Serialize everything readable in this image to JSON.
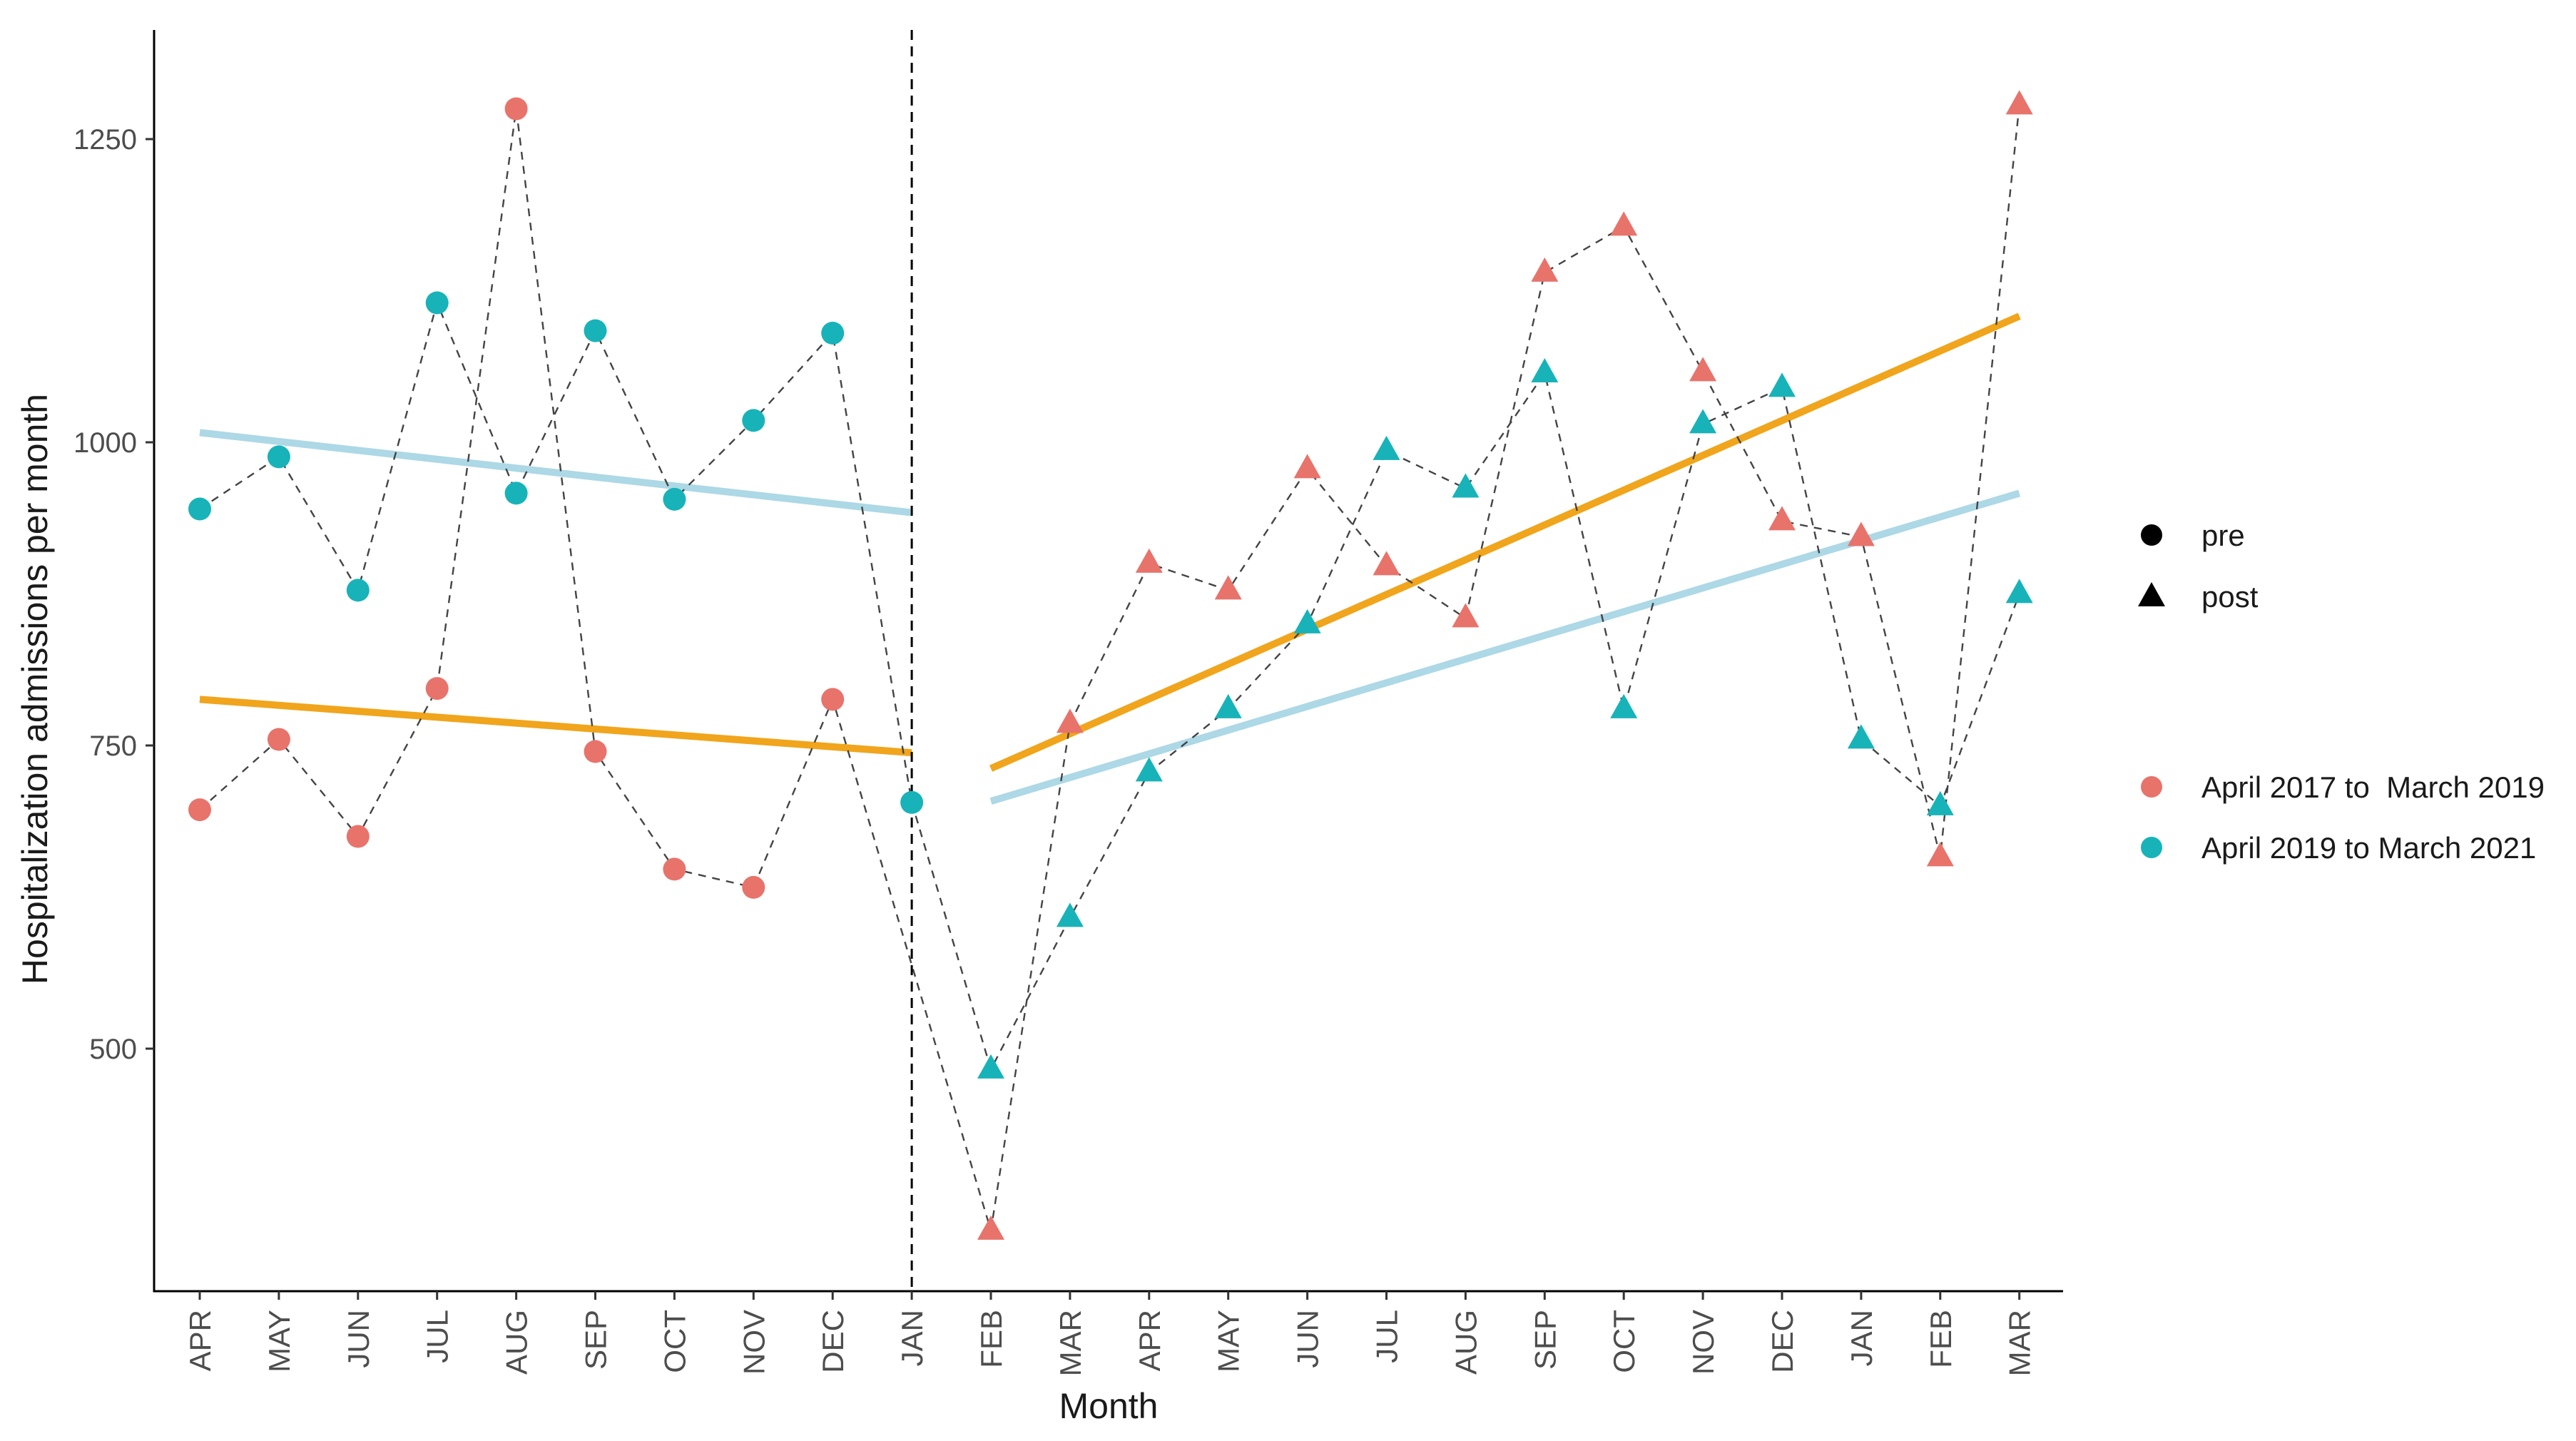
{
  "chart_data": {
    "type": "scatter",
    "title": "",
    "xlabel": "Month",
    "ylabel": "Hospitalization admissions per month",
    "ylim": [
      300,
      1340
    ],
    "y_ticks": [
      500,
      750,
      1000,
      1250
    ],
    "categories": [
      "APR",
      "MAY",
      "JUN",
      "JUL",
      "AUG",
      "SEP",
      "OCT",
      "NOV",
      "DEC",
      "JAN",
      "FEB",
      "MAR",
      "APR",
      "MAY",
      "JUN",
      "JUL",
      "AUG",
      "SEP",
      "OCT",
      "NOV",
      "DEC",
      "JAN",
      "FEB",
      "MAR"
    ],
    "intervention_index": 9,
    "colors": {
      "series_a": "#e8736b",
      "series_b": "#17b3b9",
      "trend_a": "#f0a51c",
      "trend_b": "#add8e6",
      "connector": "#444444",
      "axis": "#000000"
    },
    "series": [
      {
        "name": "April 2017 to  March 2019",
        "color_key": "series_a",
        "values": [
          697,
          755,
          675,
          797,
          1275,
          745,
          648,
          633,
          788,
          null,
          350,
          768,
          900,
          878,
          978,
          898,
          855,
          1140,
          1178,
          1058,
          935,
          922,
          658,
          1278
        ]
      },
      {
        "name": "April 2019 to March 2021",
        "color_key": "series_b",
        "values": [
          945,
          988,
          878,
          1115,
          958,
          1092,
          953,
          1018,
          1090,
          703,
          483,
          608,
          728,
          780,
          850,
          993,
          962,
          1057,
          780,
          1015,
          1045,
          755,
          700,
          875
        ]
      }
    ],
    "shape_legend": [
      {
        "label": "pre",
        "shape": "circle"
      },
      {
        "label": "post",
        "shape": "triangle"
      }
    ],
    "trend_lines": [
      {
        "series": "April 2017 to  March 2019",
        "color_key": "trend_a",
        "segment": "pre",
        "from_index": 0,
        "to_index": 9,
        "y_start": 788,
        "y_end": 744
      },
      {
        "series": "April 2017 to  March 2019",
        "color_key": "trend_a",
        "segment": "post",
        "from_index": 10,
        "to_index": 23,
        "y_start": 731,
        "y_end": 1104
      },
      {
        "series": "April 2019 to March 2021",
        "color_key": "trend_b",
        "segment": "pre",
        "from_index": 0,
        "to_index": 9,
        "y_start": 1008,
        "y_end": 942
      },
      {
        "series": "April 2019 to March 2021",
        "color_key": "trend_b",
        "segment": "post",
        "from_index": 10,
        "to_index": 23,
        "y_start": 704,
        "y_end": 958
      }
    ],
    "legend_position": "right"
  }
}
